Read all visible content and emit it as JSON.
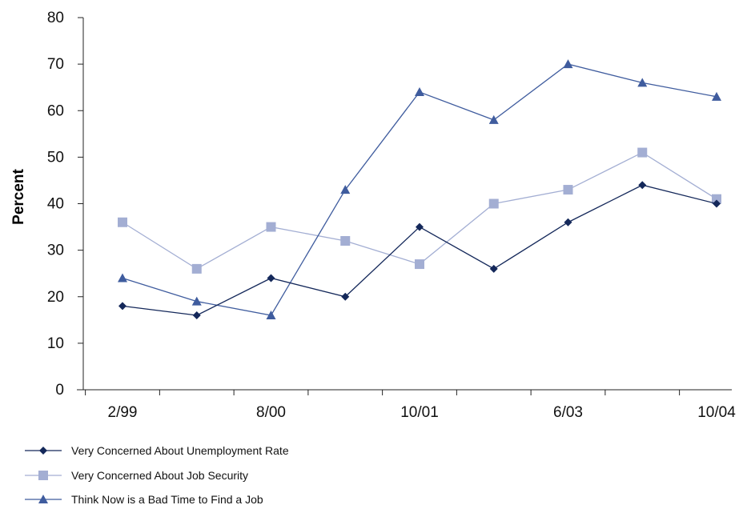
{
  "chart_data": {
    "type": "line",
    "title": "",
    "xlabel": "",
    "ylabel": "Percent",
    "ylim": [
      0,
      80
    ],
    "yticks": [
      0,
      10,
      20,
      30,
      40,
      50,
      60,
      70,
      80
    ],
    "x_points": [
      "2/99",
      "",
      "8/00",
      "",
      "10/01",
      "",
      "6/03",
      "",
      "10/04"
    ],
    "x_tick_labels": [
      "2/99",
      "8/00",
      "10/01",
      "6/03",
      "10/04"
    ],
    "grid": false,
    "legend_position": "bottom-left",
    "series": [
      {
        "name": "Very Concerned About Unemployment Rate",
        "marker": "diamond",
        "color": "#14285a",
        "values": [
          18,
          16,
          24,
          20,
          35,
          26,
          36,
          44,
          40
        ]
      },
      {
        "name": "Very Concerned About Job Security",
        "marker": "square",
        "color": "#a3aed3",
        "values": [
          36,
          26,
          35,
          32,
          27,
          40,
          43,
          51,
          41
        ]
      },
      {
        "name": "Think Now is a Bad Time to Find a Job",
        "marker": "triangle",
        "color": "#3f5c9e",
        "values": [
          24,
          19,
          16,
          43,
          64,
          58,
          70,
          66,
          63
        ]
      }
    ]
  }
}
